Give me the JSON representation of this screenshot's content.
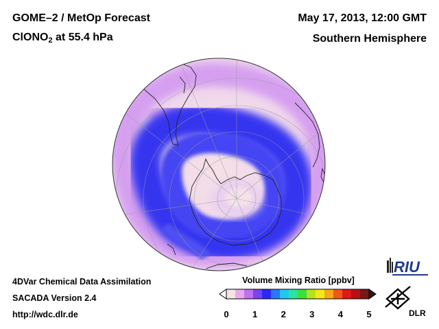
{
  "header": {
    "product": "GOME–2 / MetOp Forecast",
    "species_main": "ClONO",
    "species_sub": "2",
    "species_level": " at 55.4 hPa",
    "datetime": "May 17, 2013, 12:00 GMT",
    "region": "Southern Hemisphere"
  },
  "footer": {
    "line1": "4DVar Chemical Data Assimilation",
    "line2": "SACADA Version 2.4",
    "line3": "http://wdc.dlr.de"
  },
  "colorbar": {
    "title": "Volume Mixing Ratio [ppbv]",
    "ticks": [
      "0",
      "1",
      "2",
      "3",
      "4",
      "5"
    ],
    "min": 0,
    "max": 5,
    "colors": [
      "#f5e3e6",
      "#e8a8ee",
      "#c070f0",
      "#7a44f4",
      "#2a2af8",
      "#2877ff",
      "#20c8f0",
      "#28e6a0",
      "#3ce03c",
      "#b4e41e",
      "#f4e818",
      "#f8a818",
      "#f05818",
      "#e01818",
      "#b81010",
      "#781818"
    ]
  },
  "logos": {
    "riu": "RIU",
    "dlr": "DLR"
  }
}
